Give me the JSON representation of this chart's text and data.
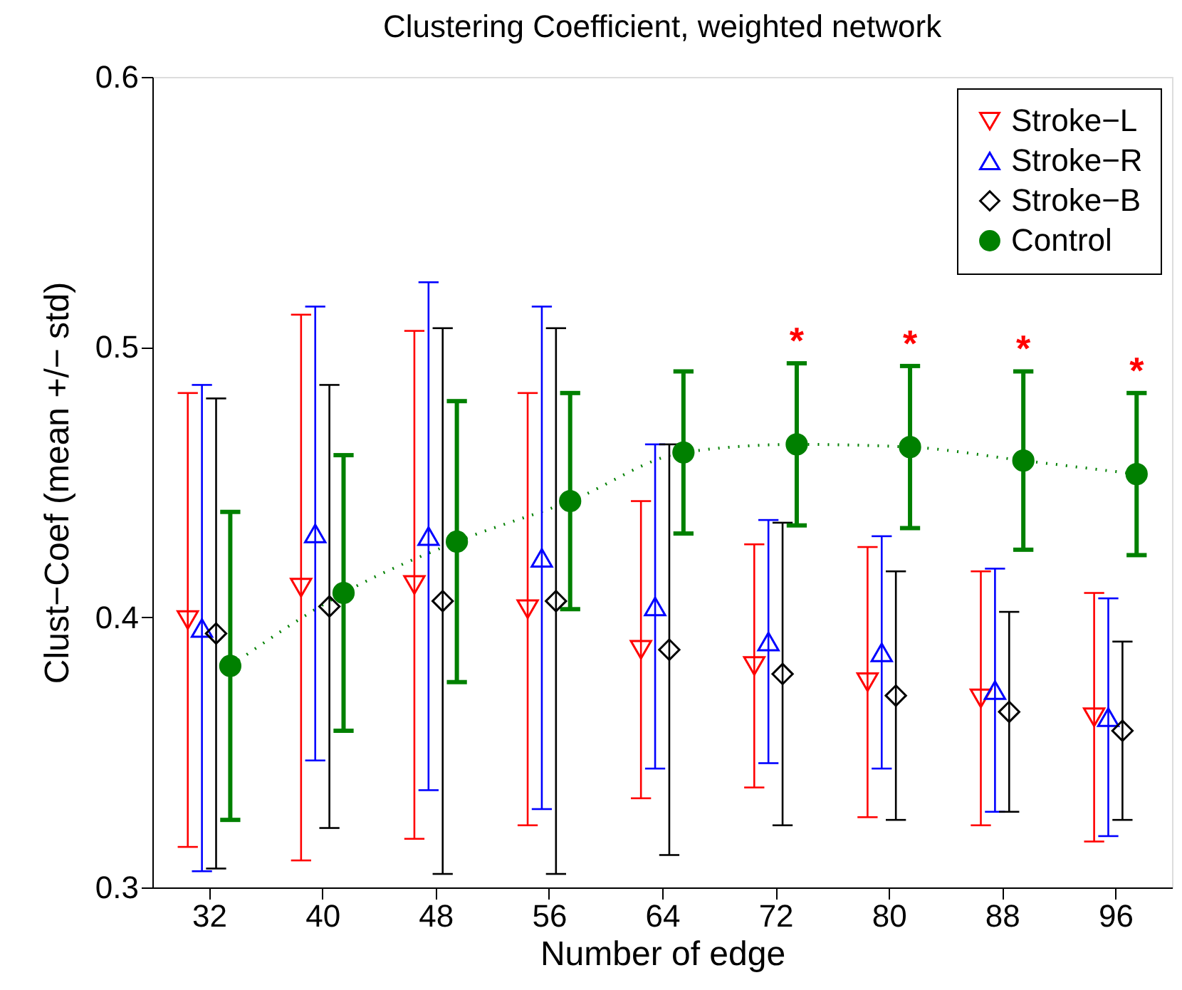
{
  "chart_data": {
    "type": "scatter",
    "title": "Clustering Coefficient, weighted network",
    "xlabel": "Number of edge",
    "ylabel": "Clust−Coef (mean +/− std)",
    "xlim": [
      28,
      100
    ],
    "xticks": [
      32,
      40,
      48,
      56,
      64,
      72,
      80,
      88,
      96
    ],
    "ylim": [
      0.3,
      0.6
    ],
    "yticks": [
      0.3,
      0.4,
      0.5,
      0.6
    ],
    "grid": false,
    "legend": "top right",
    "series": [
      {
        "name": "Stroke−L",
        "color": "#ff0000",
        "marker": "triangle-down",
        "x": [
          30.5,
          38.5,
          46.5,
          54.5,
          62.5,
          70.5,
          78.5,
          86.5,
          94.5
        ],
        "values": [
          0.399,
          0.411,
          0.412,
          0.403,
          0.388,
          0.382,
          0.376,
          0.37,
          0.363
        ],
        "errors": [
          0.084,
          0.101,
          0.094,
          0.08,
          0.055,
          0.045,
          0.05,
          0.047,
          0.046
        ]
      },
      {
        "name": "Stroke−R",
        "color": "#0000ff",
        "marker": "triangle",
        "x": [
          31.5,
          39.5,
          47.5,
          55.5,
          63.5,
          71.5,
          79.5,
          87.5,
          95.5
        ],
        "values": [
          0.396,
          0.431,
          0.43,
          0.422,
          0.404,
          0.391,
          0.387,
          0.373,
          0.363
        ],
        "errors": [
          0.09,
          0.084,
          0.094,
          0.093,
          0.06,
          0.045,
          0.043,
          0.045,
          0.044
        ]
      },
      {
        "name": "Stroke−B",
        "color": "#000000",
        "marker": "diamond",
        "x": [
          32.5,
          40.5,
          48.5,
          56.5,
          64.5,
          72.5,
          80.5,
          88.5,
          96.5
        ],
        "values": [
          0.394,
          0.404,
          0.406,
          0.406,
          0.388,
          0.379,
          0.371,
          0.365,
          0.358
        ],
        "errors": [
          0.087,
          0.082,
          0.101,
          0.101,
          0.076,
          0.056,
          0.046,
          0.037,
          0.033
        ]
      },
      {
        "name": "Control",
        "color": "#008000",
        "type": "line",
        "marker": "circle",
        "line_style": "dotted",
        "x": [
          33.5,
          41.5,
          49.5,
          57.5,
          65.5,
          73.5,
          81.5,
          89.5,
          97.5
        ],
        "values": [
          0.382,
          0.409,
          0.428,
          0.443,
          0.461,
          0.464,
          0.463,
          0.458,
          0.453
        ],
        "errors": [
          0.057,
          0.051,
          0.052,
          0.04,
          0.03,
          0.03,
          0.03,
          0.033,
          0.03
        ]
      }
    ],
    "annotations": [
      "*",
      "*",
      "*",
      "*"
    ]
  }
}
